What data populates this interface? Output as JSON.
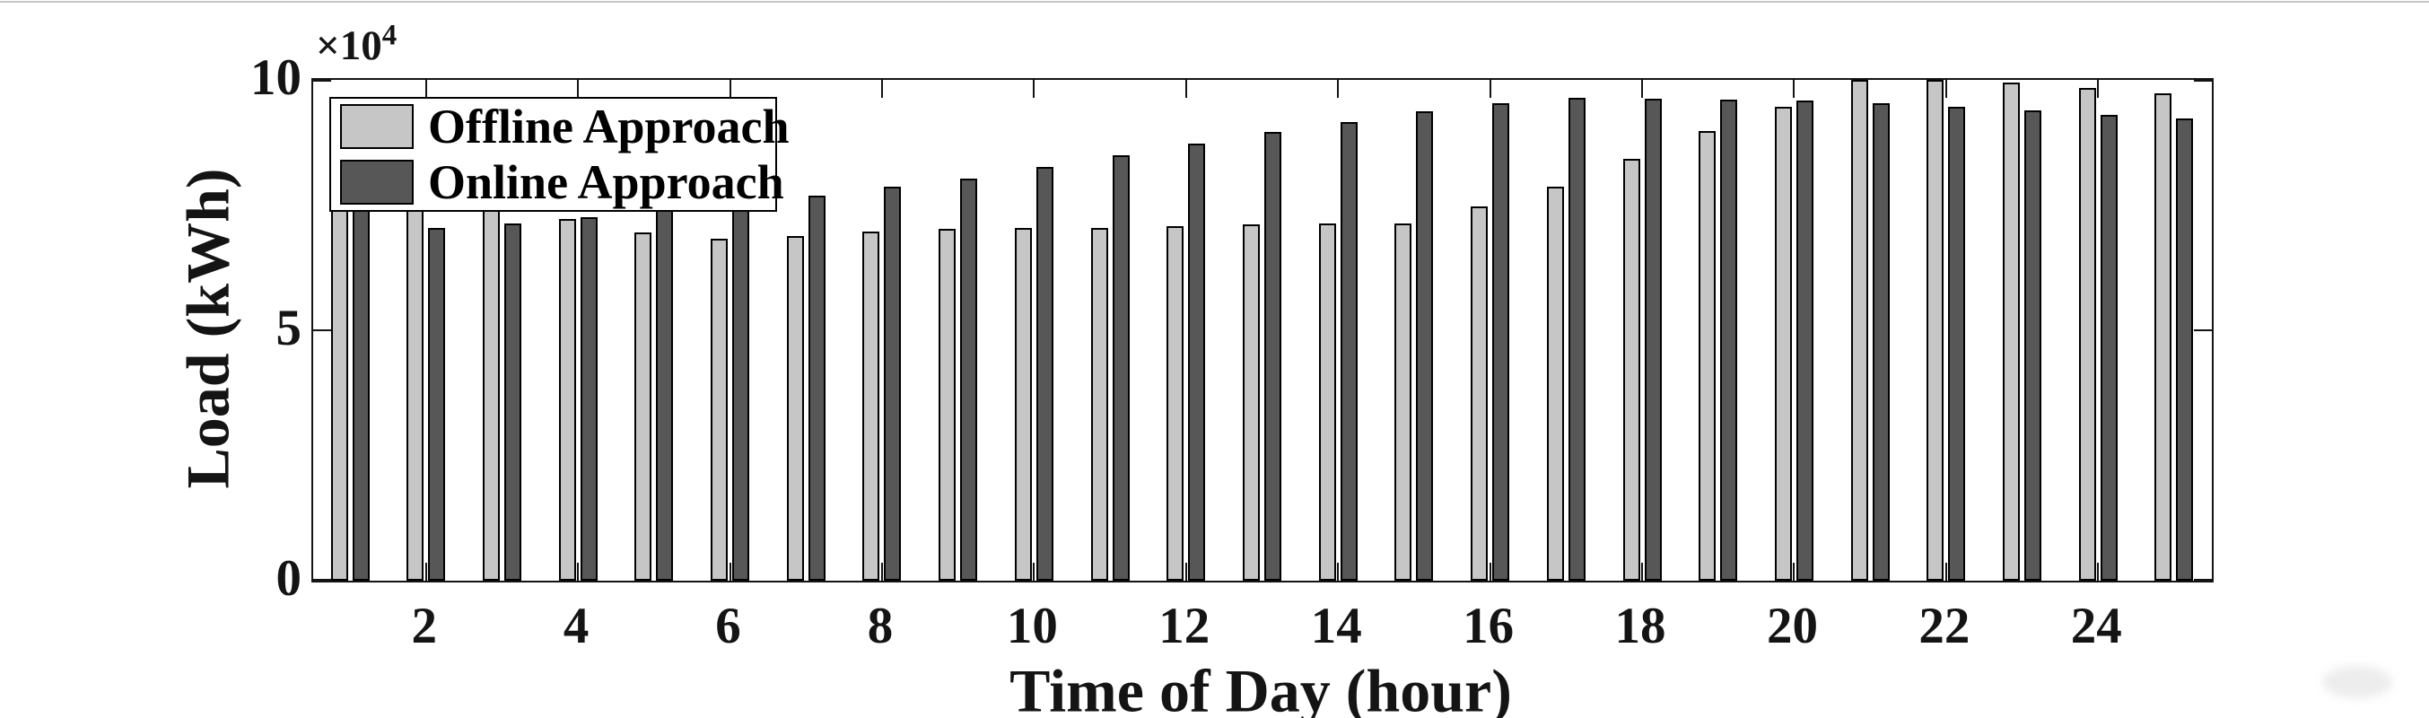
{
  "figure": {
    "background": "#ffffff",
    "frame_color": "#141414",
    "top_edge_line_color": "#c6c6c6",
    "y_axis_multiplier_base": "×10",
    "y_axis_multiplier_exponent": "4"
  },
  "chart_data": {
    "type": "bar",
    "title": "",
    "xlabel": "Time of Day (hour)",
    "ylabel": "Load (kWh)",
    "x": [
      1,
      2,
      3,
      4,
      5,
      6,
      7,
      8,
      9,
      10,
      11,
      12,
      13,
      14,
      15,
      16,
      17,
      18,
      19,
      20,
      21,
      22,
      23,
      24,
      25
    ],
    "x_ticks": [
      2,
      4,
      6,
      8,
      10,
      12,
      14,
      16,
      18,
      20,
      22,
      24
    ],
    "x_tick_labels": [
      "2",
      "4",
      "6",
      "8",
      "10",
      "12",
      "14",
      "16",
      "18",
      "20",
      "22",
      "24"
    ],
    "y_ticks": [
      0,
      5,
      10
    ],
    "y_tick_labels": [
      "0",
      "5",
      "10"
    ],
    "ylim": [
      0,
      10
    ],
    "y_unit_scale": "1e4 kWh (axis shows ×10^4)",
    "grid": false,
    "legend_position": "upper-left-inside",
    "series": [
      {
        "name": "Offline Approach",
        "color": "#c6c6c6",
        "edge_color": "#000000",
        "values": [
          7.55,
          7.5,
          7.5,
          7.22,
          6.96,
          6.82,
          6.88,
          6.97,
          7.03,
          7.04,
          7.05,
          7.07,
          7.12,
          7.13,
          7.13,
          7.47,
          7.86,
          8.42,
          8.98,
          9.46,
          10.0,
          10.0,
          9.94,
          9.83,
          9.74
        ]
      },
      {
        "name": "Online Approach",
        "color": "#575757",
        "edge_color": "#000000",
        "values": [
          7.6,
          7.05,
          7.14,
          7.25,
          7.5,
          7.55,
          7.68,
          7.86,
          8.03,
          8.26,
          8.49,
          8.72,
          8.96,
          9.16,
          9.37,
          9.53,
          9.64,
          9.63,
          9.6,
          9.58,
          9.53,
          9.46,
          9.39,
          9.31,
          9.23
        ]
      }
    ]
  }
}
